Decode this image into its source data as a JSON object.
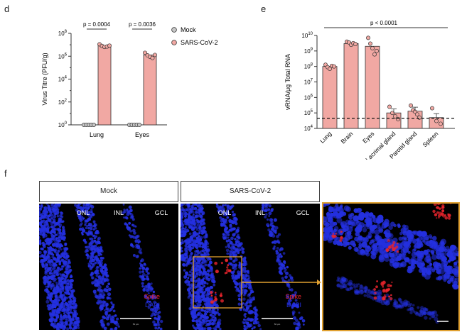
{
  "panels": {
    "d": "d",
    "e": "e",
    "f": "f"
  },
  "chart_data": [
    {
      "type": "bar",
      "log_y": true,
      "ylabel": "Virus Titre (PFU/g)",
      "ylim": [
        1,
        100000000
      ],
      "yticks": [
        "10",
        "10",
        "10",
        "10",
        "10"
      ],
      "ytick_exp": [
        "0",
        "2",
        "4",
        "6",
        "8"
      ],
      "categories": [
        "Lung",
        "Eyes"
      ],
      "series": [
        {
          "name": "Mock",
          "color": "#c8c8c8",
          "values": [
            1,
            1
          ],
          "points": [
            [
              1,
              1,
              1,
              1,
              1
            ],
            [
              1,
              1,
              1,
              1,
              1
            ]
          ]
        },
        {
          "name": "SARS-CoV-2",
          "color": "#f1a8a3",
          "values": [
            8000000,
            1300000
          ],
          "points": [
            [
              11000000,
              8000000,
              6500000,
              7000000,
              8500000
            ],
            [
              2000000,
              1200000,
              900000,
              700000,
              1300000
            ]
          ]
        }
      ],
      "annotations": [
        "p = 0.0004",
        "p = 0.0036"
      ]
    },
    {
      "type": "bar",
      "log_y": true,
      "ylabel": "vRNA/μg Total RNA",
      "ylim": [
        10000,
        10000000000
      ],
      "yticks": [
        "10",
        "10",
        "10",
        "10",
        "10",
        "10",
        "10"
      ],
      "ytick_exp": [
        "4",
        "5",
        "6",
        "7",
        "8",
        "9",
        "10"
      ],
      "categories": [
        "Lung",
        "Brain",
        "Eyes",
        "Lacrimal gland",
        "Parotid gland",
        "Spleen"
      ],
      "values": [
        100000000,
        3000000000,
        2000000000,
        100000,
        130000,
        50000
      ],
      "points": [
        [
          130000000,
          90000000,
          70000000,
          110000000,
          100000000
        ],
        [
          4000000000,
          3500000000,
          2500000000,
          3200000000,
          2800000000
        ],
        [
          7000000000,
          3000000000,
          1500000000,
          600000000,
          1000000000
        ],
        [
          250000,
          100000,
          60000,
          40000
        ],
        [
          300000,
          150000,
          120000,
          80000,
          50000
        ],
        [
          200000,
          30000,
          20000
        ]
      ],
      "color": "#f1a8a3",
      "threshold": 45000,
      "annotation": "p < 0.0001"
    }
  ],
  "micrographs": {
    "mock_label": "Mock",
    "sars_label": "SARS-CoV-2",
    "layers": [
      "ONL",
      "INL",
      "GCL"
    ],
    "stain_spike": "Spike",
    "stain_dapi": "DAPI",
    "scale_text": "50 μm",
    "spike_color": "#e8242c",
    "dapi_color": "#2430e0",
    "inset_color": "#e0a030"
  }
}
